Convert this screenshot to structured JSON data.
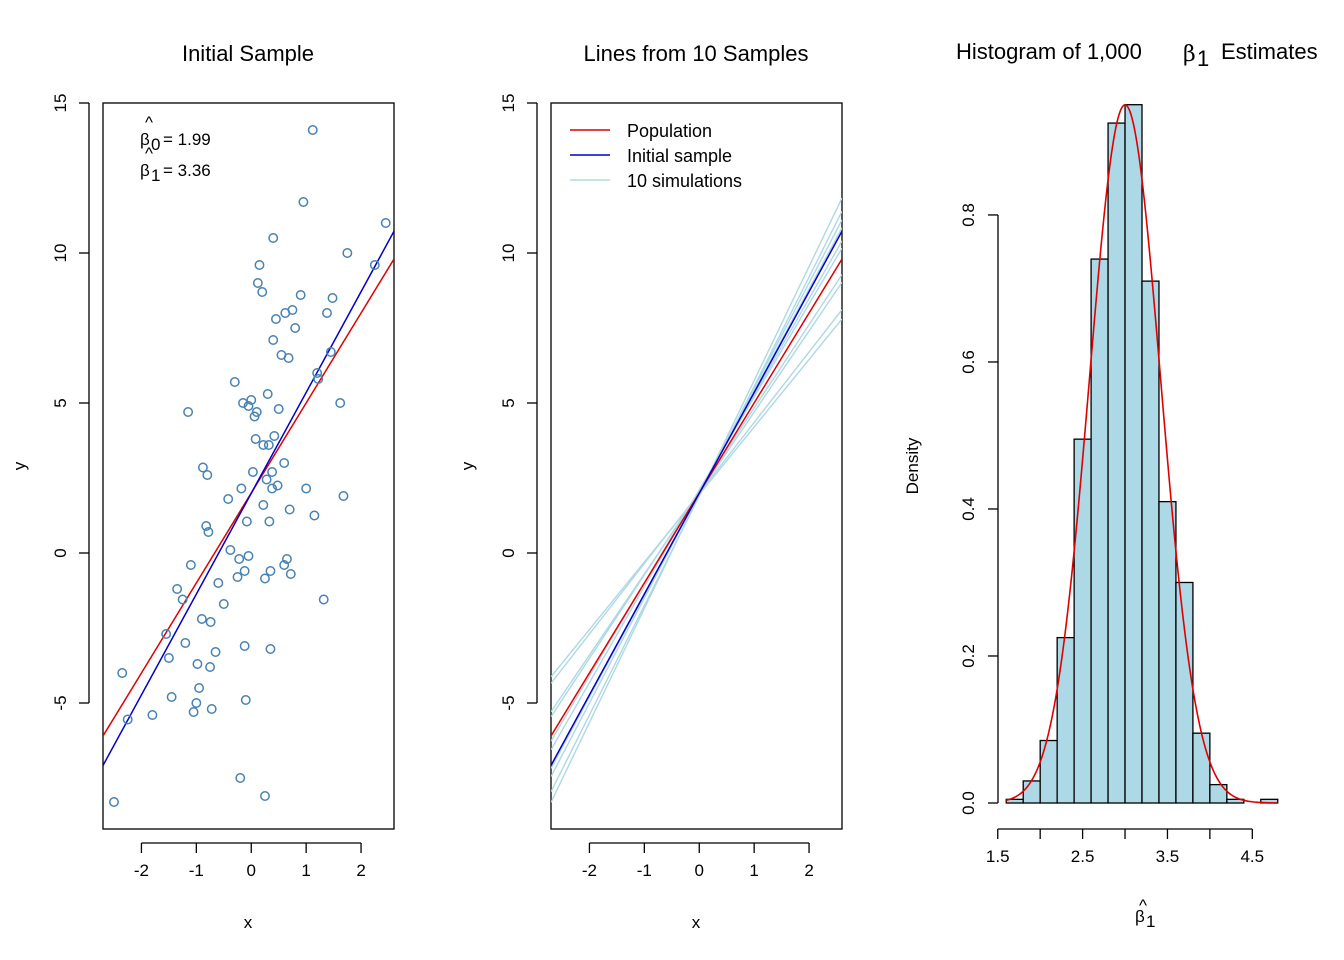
{
  "chart_data": [
    {
      "id": "p1",
      "type": "scatter",
      "title": "Initial Sample",
      "xlabel": "x",
      "ylabel": "y",
      "xlim": [
        -2.7,
        2.6
      ],
      "ylim": [
        -9.2,
        15
      ],
      "xticks": [
        -2,
        -1,
        0,
        1,
        2
      ],
      "yticks": [
        -5,
        0,
        5,
        10,
        15
      ],
      "annotations": [
        {
          "symbol": "β",
          "sub": "0",
          "text": "= 1.99"
        },
        {
          "symbol": "β",
          "sub": "1",
          "text": "= 3.36"
        }
      ],
      "points_color": "#4682b4",
      "points": [
        [
          -2.5,
          -8.3
        ],
        [
          -2.35,
          -4
        ],
        [
          -2.25,
          -5.55
        ],
        [
          -1.8,
          -5.4
        ],
        [
          -1.55,
          -2.7
        ],
        [
          -1.5,
          -3.5
        ],
        [
          -1.45,
          -4.8
        ],
        [
          -1.35,
          -1.2
        ],
        [
          -1.25,
          -1.55
        ],
        [
          -1.2,
          -3
        ],
        [
          -1.15,
          4.7
        ],
        [
          -1.1,
          -0.4
        ],
        [
          -1.05,
          -5.3
        ],
        [
          -1.0,
          -5.0
        ],
        [
          -0.98,
          -3.7
        ],
        [
          -0.95,
          -4.5
        ],
        [
          -0.9,
          -2.2
        ],
        [
          -0.88,
          2.85
        ],
        [
          -0.82,
          0.9
        ],
        [
          -0.8,
          2.6
        ],
        [
          -0.78,
          0.7
        ],
        [
          -0.75,
          -3.8
        ],
        [
          -0.74,
          -2.3
        ],
        [
          -0.72,
          -5.2
        ],
        [
          -0.65,
          -3.3
        ],
        [
          -0.6,
          -1.0
        ],
        [
          -0.5,
          -1.7
        ],
        [
          -0.42,
          1.8
        ],
        [
          -0.38,
          0.1
        ],
        [
          -0.3,
          5.7
        ],
        [
          -0.25,
          -0.8
        ],
        [
          -0.22,
          -0.2
        ],
        [
          -0.2,
          -7.5
        ],
        [
          -0.18,
          2.15
        ],
        [
          -0.15,
          5.0
        ],
        [
          -0.12,
          -0.6
        ],
        [
          -0.12,
          -3.1
        ],
        [
          -0.1,
          -4.9
        ],
        [
          -0.08,
          1.05
        ],
        [
          -0.05,
          -0.1
        ],
        [
          -0.05,
          4.9
        ],
        [
          0.0,
          5.1
        ],
        [
          0.03,
          2.7
        ],
        [
          0.06,
          4.55
        ],
        [
          0.08,
          3.8
        ],
        [
          0.1,
          4.7
        ],
        [
          0.12,
          9.0
        ],
        [
          0.15,
          9.6
        ],
        [
          0.2,
          8.7
        ],
        [
          0.22,
          3.6
        ],
        [
          0.22,
          1.6
        ],
        [
          0.25,
          -0.85
        ],
        [
          0.25,
          -8.1
        ],
        [
          0.28,
          2.45
        ],
        [
          0.3,
          5.3
        ],
        [
          0.32,
          3.6
        ],
        [
          0.33,
          1.05
        ],
        [
          0.35,
          -3.2
        ],
        [
          0.35,
          -0.6
        ],
        [
          0.38,
          2.15
        ],
        [
          0.38,
          2.7
        ],
        [
          0.4,
          7.1
        ],
        [
          0.4,
          10.5
        ],
        [
          0.42,
          3.9
        ],
        [
          0.45,
          7.8
        ],
        [
          0.48,
          2.25
        ],
        [
          0.5,
          4.8
        ],
        [
          0.55,
          6.6
        ],
        [
          0.6,
          3.0
        ],
        [
          0.6,
          -0.4
        ],
        [
          0.62,
          8.0
        ],
        [
          0.65,
          -0.2
        ],
        [
          0.68,
          6.5
        ],
        [
          0.7,
          1.45
        ],
        [
          0.72,
          -0.7
        ],
        [
          0.75,
          8.1
        ],
        [
          0.8,
          7.5
        ],
        [
          0.9,
          8.6
        ],
        [
          0.95,
          11.7
        ],
        [
          1.0,
          2.15
        ],
        [
          1.12,
          14.1
        ],
        [
          1.15,
          1.25
        ],
        [
          1.2,
          6.0
        ],
        [
          1.22,
          5.8
        ],
        [
          1.32,
          -1.55
        ],
        [
          1.38,
          8.0
        ],
        [
          1.45,
          6.7
        ],
        [
          1.48,
          8.5
        ],
        [
          1.62,
          5.0
        ],
        [
          1.68,
          1.9
        ],
        [
          1.75,
          10.0
        ],
        [
          2.25,
          9.6
        ],
        [
          2.45,
          11.0
        ]
      ],
      "lines": [
        {
          "name": "Population",
          "color": "#e00000",
          "intercept": 2.0,
          "slope": 3.0
        },
        {
          "name": "Initial sample",
          "color": "#0000cc",
          "intercept": 1.99,
          "slope": 3.36
        }
      ]
    },
    {
      "id": "p2",
      "type": "line",
      "title": "Lines from 10 Samples",
      "xlabel": "x",
      "ylabel": "y",
      "xlim": [
        -2.7,
        2.6
      ],
      "ylim": [
        -9.2,
        15
      ],
      "xticks": [
        -2,
        -1,
        0,
        1,
        2
      ],
      "yticks": [
        -5,
        0,
        5,
        10,
        15
      ],
      "legend": {
        "position": "top-left",
        "entries": [
          {
            "label": "Population",
            "color": "#e00000"
          },
          {
            "label": "Initial sample",
            "color": "#0000cc"
          },
          {
            "label": "10 simulations",
            "color": "#add8e6"
          }
        ]
      },
      "lines": [
        {
          "name": "Population",
          "color": "#e00000",
          "intercept": 2.0,
          "slope": 3.0
        },
        {
          "name": "Initial sample",
          "color": "#0000cc",
          "intercept": 1.99,
          "slope": 3.36
        }
      ],
      "simulations": {
        "color": "#add8e6",
        "lines": [
          {
            "intercept": 1.95,
            "slope": 2.25
          },
          {
            "intercept": 2.0,
            "slope": 2.35
          },
          {
            "intercept": 2.0,
            "slope": 2.7
          },
          {
            "intercept": 2.05,
            "slope": 2.78
          },
          {
            "intercept": 2.1,
            "slope": 3.1
          },
          {
            "intercept": 2.08,
            "slope": 3.2
          },
          {
            "intercept": 2.0,
            "slope": 3.4
          },
          {
            "intercept": 2.0,
            "slope": 3.5
          },
          {
            "intercept": 1.9,
            "slope": 3.65
          },
          {
            "intercept": 1.95,
            "slope": 3.8
          }
        ]
      }
    },
    {
      "id": "p3",
      "type": "histogram",
      "title": "Histogram of 1,000",
      "title_symbol": "β",
      "title_sub": "1",
      "title_tail": "Estimates",
      "xlabel_symbol": "β",
      "xlabel_sub": "1",
      "ylabel": "Density",
      "xlim": [
        1.55,
        4.85
      ],
      "ylim": [
        0,
        0.97
      ],
      "xticks": [
        1.5,
        2.5,
        3.5,
        4.5
      ],
      "xtick_labels": [
        "1.5",
        "2.5",
        "3.5",
        "4.5"
      ],
      "xaxis_extent": [
        1.5,
        4.5
      ],
      "yticks": [
        0.0,
        0.2,
        0.4,
        0.6,
        0.8
      ],
      "ytick_labels": [
        "0.0",
        "0.2",
        "0.4",
        "0.6",
        "0.8"
      ],
      "bar_color": "#add8e6",
      "bin_width": 0.2,
      "bins": [
        [
          1.6,
          0.005
        ],
        [
          1.8,
          0.03
        ],
        [
          2.0,
          0.085
        ],
        [
          2.2,
          0.225
        ],
        [
          2.4,
          0.495
        ],
        [
          2.6,
          0.74
        ],
        [
          2.8,
          0.925
        ],
        [
          3.0,
          0.95
        ],
        [
          3.2,
          0.71
        ],
        [
          3.4,
          0.41
        ],
        [
          3.6,
          0.3
        ],
        [
          3.8,
          0.095
        ],
        [
          4.0,
          0.025
        ],
        [
          4.2,
          0.005
        ],
        [
          4.6,
          0.005
        ]
      ],
      "density_curve": {
        "color": "#e00000",
        "mean": 3.0,
        "sd": 0.42
      }
    }
  ]
}
